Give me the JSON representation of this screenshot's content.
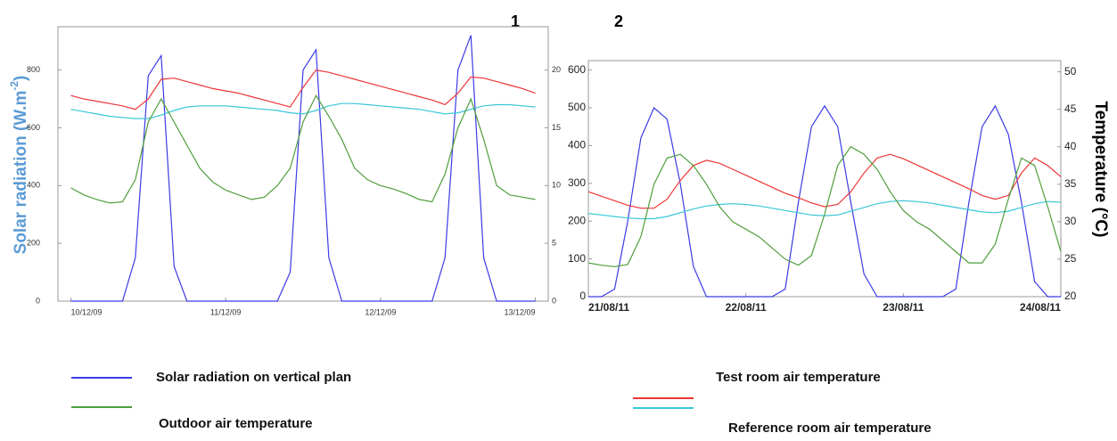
{
  "chart_data": [
    {
      "type": "line",
      "label": "1",
      "y_label": [
        "Solar radiation (W.m",
        "-2",
        ")"
      ],
      "x": [
        0,
        2,
        4,
        6,
        8,
        10,
        12,
        14,
        16,
        18,
        20,
        22,
        24,
        26,
        28,
        30,
        32,
        34,
        36,
        38,
        40,
        42,
        44,
        46,
        48,
        50,
        52,
        54,
        56,
        58,
        60,
        62,
        64,
        66,
        68,
        70,
        72
      ],
      "xlim": [
        -2,
        74
      ],
      "xticks": [
        {
          "value": 0,
          "label": "10/12/09"
        },
        {
          "value": 24,
          "label": "11/12/09"
        },
        {
          "value": 48,
          "label": "12/12/09"
        },
        {
          "value": 72,
          "label": "13/12/09"
        }
      ],
      "ylim": [
        0,
        950
      ],
      "yticks": [
        0,
        200,
        400,
        600,
        800
      ],
      "y2lim": [
        0,
        23.75
      ],
      "y2ticks": [
        0,
        5,
        10,
        15,
        20
      ],
      "series": [
        {
          "name": "Solar radiation on vertical plan",
          "color": "#3b3be6",
          "values": [
            0,
            0,
            0,
            0,
            0,
            150,
            780,
            850,
            120,
            0,
            0,
            0,
            0,
            0,
            0,
            0,
            0,
            100,
            800,
            870,
            150,
            0,
            0,
            0,
            0,
            0,
            0,
            0,
            0,
            150,
            800,
            920,
            150,
            0,
            0,
            0,
            0
          ]
        },
        {
          "name": "Test room air temperature",
          "color": "#ee3535",
          "axis": "y2",
          "values": [
            17.8,
            17.5,
            17.3,
            17.1,
            16.9,
            16.6,
            17.5,
            19.2,
            19.3,
            19.0,
            18.7,
            18.4,
            18.2,
            18.0,
            17.7,
            17.4,
            17.1,
            16.8,
            18.5,
            20.0,
            19.8,
            19.5,
            19.2,
            18.9,
            18.6,
            18.3,
            18.0,
            17.7,
            17.4,
            17.0,
            18.0,
            19.4,
            19.3,
            19.0,
            18.7,
            18.4,
            18.0
          ]
        },
        {
          "name": "Reference room air temperature",
          "color": "#38c6d6",
          "axis": "y2",
          "values": [
            16.6,
            16.4,
            16.2,
            16.0,
            15.9,
            15.8,
            15.8,
            16.1,
            16.5,
            16.8,
            16.9,
            16.9,
            16.9,
            16.8,
            16.7,
            16.6,
            16.5,
            16.3,
            16.2,
            16.5,
            16.9,
            17.1,
            17.1,
            17.0,
            16.9,
            16.8,
            16.7,
            16.6,
            16.4,
            16.2,
            16.3,
            16.6,
            16.9,
            17.0,
            17.0,
            16.9,
            16.8
          ]
        },
        {
          "name": "Outdoor air temperature",
          "color": "#4f9e3c",
          "axis": "y2",
          "values": [
            9.8,
            9.2,
            8.8,
            8.5,
            8.6,
            10.5,
            15.5,
            17.5,
            15.5,
            13.5,
            11.5,
            10.3,
            9.6,
            9.2,
            8.8,
            9.0,
            10.0,
            11.5,
            15.5,
            17.8,
            16.0,
            14.0,
            11.5,
            10.5,
            10.0,
            9.7,
            9.3,
            8.8,
            8.6,
            11.0,
            15.0,
            17.5,
            14.0,
            10.0,
            9.2,
            9.0,
            8.8
          ]
        }
      ]
    },
    {
      "type": "line",
      "label": "2",
      "y2_label": "Temperature (°C)",
      "x": [
        0,
        2,
        4,
        6,
        8,
        10,
        12,
        14,
        16,
        18,
        20,
        22,
        24,
        26,
        28,
        30,
        32,
        34,
        36,
        38,
        40,
        42,
        44,
        46,
        48,
        50,
        52,
        54,
        56,
        58,
        60,
        62,
        64,
        66,
        68,
        70,
        72
      ],
      "xlim": [
        0,
        72
      ],
      "xticks": [
        {
          "value": 0,
          "label": "21/08/11"
        },
        {
          "value": 24,
          "label": "22/08/11"
        },
        {
          "value": 48,
          "label": "23/08/11"
        },
        {
          "value": 72,
          "label": "24/08/11"
        }
      ],
      "ylim": [
        0,
        625
      ],
      "yticks": [
        0,
        100,
        200,
        300,
        400,
        500,
        600
      ],
      "y2lim": [
        20,
        51.5
      ],
      "y2ticks": [
        20,
        25,
        30,
        35,
        40,
        45,
        50
      ],
      "series": [
        {
          "color": "#3b3be6",
          "values": [
            0,
            0,
            20,
            200,
            420,
            500,
            470,
            300,
            80,
            0,
            0,
            0,
            0,
            0,
            0,
            20,
            250,
            450,
            505,
            450,
            250,
            60,
            0,
            0,
            0,
            0,
            0,
            0,
            20,
            250,
            450,
            505,
            430,
            250,
            40,
            0,
            0
          ]
        },
        {
          "color": "#ee3535",
          "axis": "y2",
          "values": [
            34.0,
            33.4,
            32.8,
            32.2,
            31.8,
            31.8,
            33.0,
            35.5,
            37.5,
            38.2,
            37.8,
            37.0,
            36.2,
            35.4,
            34.6,
            33.8,
            33.2,
            32.5,
            32.0,
            32.3,
            34.0,
            36.5,
            38.5,
            39.0,
            38.4,
            37.6,
            36.8,
            36.0,
            35.2,
            34.4,
            33.5,
            33.0,
            33.5,
            36.5,
            38.5,
            37.5,
            36.0
          ]
        },
        {
          "color": "#38c6d6",
          "axis": "y2",
          "values": [
            31.1,
            30.9,
            30.7,
            30.5,
            30.4,
            30.4,
            30.7,
            31.2,
            31.7,
            32.1,
            32.3,
            32.4,
            32.3,
            32.1,
            31.8,
            31.5,
            31.2,
            30.9,
            30.8,
            30.9,
            31.4,
            31.9,
            32.4,
            32.7,
            32.8,
            32.7,
            32.5,
            32.2,
            31.9,
            31.6,
            31.3,
            31.2,
            31.4,
            31.9,
            32.4,
            32.7,
            32.6
          ]
        },
        {
          "color": "#4f9e3c",
          "axis": "y2",
          "values": [
            24.5,
            24.2,
            24.0,
            24.3,
            28.0,
            35.0,
            38.5,
            39.0,
            37.5,
            35.0,
            32.0,
            30.0,
            29.0,
            28.0,
            26.5,
            25.0,
            24.2,
            25.5,
            31.0,
            37.5,
            40.0,
            39.0,
            37.0,
            34.0,
            31.5,
            30.0,
            29.0,
            27.5,
            26.0,
            24.5,
            24.5,
            27.0,
            33.0,
            38.5,
            37.5,
            32.0,
            26.0
          ]
        }
      ]
    }
  ]
}
